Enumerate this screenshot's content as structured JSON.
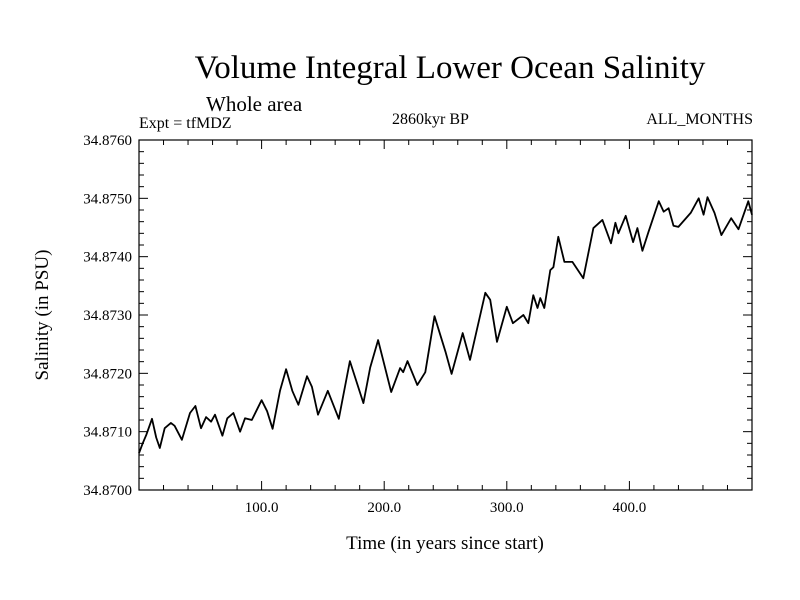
{
  "chart_data": {
    "type": "line",
    "title": "Volume Integral Lower Ocean Salinity",
    "subtitle": "Whole area",
    "annotations": {
      "left": "Expt = tfMDZ",
      "center": "2860kyr BP",
      "right": "ALL_MONTHS"
    },
    "xlabel": "Time (in years since start)",
    "ylabel": "Salinity (in PSU)",
    "xlim": [
      0,
      500
    ],
    "ylim": [
      34.87,
      34.876
    ],
    "x_ticks": [
      100,
      200,
      300,
      400
    ],
    "x_tick_labels": [
      "100.0",
      "200.0",
      "300.0",
      "400.0"
    ],
    "x_minor_step": 20,
    "y_ticks": [
      34.87,
      34.871,
      34.872,
      34.873,
      34.874,
      34.875,
      34.876
    ],
    "y_tick_labels": [
      "34.8700",
      "34.8710",
      "34.8720",
      "34.8730",
      "34.8740",
      "34.8750",
      "34.8760"
    ],
    "y_minor_step": 0.0002,
    "grid": false,
    "series": [
      {
        "name": "Salinity",
        "color": "#000000",
        "x": [
          0,
          3,
          6,
          10.6,
          14,
          17,
          21,
          26,
          29,
          35,
          41.6,
          46,
          50.6,
          54.7,
          58.8,
          62,
          68,
          72,
          77,
          82.5,
          86.5,
          92,
          100,
          104.5,
          109,
          115,
          120,
          125,
          130,
          137,
          141,
          146,
          154,
          163,
          172,
          183,
          188.6,
          195,
          205.7,
          213,
          215.5,
          219,
          227,
          233.5,
          241,
          250,
          255,
          264,
          270,
          282.5,
          286.5,
          292,
          300,
          305,
          313.5,
          317.5,
          321.6,
          325,
          327.3,
          330.6,
          335.5,
          338,
          342,
          347,
          353.5,
          362.4,
          370.6,
          378,
          385,
          388.6,
          391,
          397,
          403,
          406.5,
          410.6,
          415.5,
          424,
          428,
          432,
          436,
          440,
          450,
          456.5,
          460.5,
          463.7,
          469.4,
          475,
          483,
          489,
          497,
          500
        ],
        "y": [
          34.87063,
          34.8708,
          34.87095,
          34.87122,
          34.8709,
          34.87072,
          34.87106,
          34.87115,
          34.8711,
          34.87086,
          34.87132,
          34.87144,
          34.87106,
          34.87125,
          34.87117,
          34.87129,
          34.87093,
          34.87123,
          34.87132,
          34.871,
          34.87123,
          34.8712,
          34.87154,
          34.87135,
          34.87105,
          34.8717,
          34.87207,
          34.8717,
          34.87146,
          34.87195,
          34.87177,
          34.87129,
          34.8717,
          34.87122,
          34.87221,
          34.87149,
          34.8721,
          34.87257,
          34.87168,
          34.87209,
          34.87202,
          34.87221,
          34.8718,
          34.87202,
          34.87298,
          34.87237,
          34.87199,
          34.87269,
          34.87223,
          34.87338,
          34.87326,
          34.87254,
          34.87314,
          34.87286,
          34.873,
          34.87286,
          34.87334,
          34.87312,
          34.87329,
          34.87312,
          34.87377,
          34.87382,
          34.87434,
          34.87391,
          34.87391,
          34.87363,
          34.87449,
          34.87463,
          34.87423,
          34.87458,
          34.8744,
          34.8747,
          34.87425,
          34.87449,
          34.8741,
          34.87442,
          34.87495,
          34.87477,
          34.87483,
          34.87453,
          34.87451,
          34.87475,
          34.875,
          34.87472,
          34.87502,
          34.87475,
          34.87437,
          34.87466,
          34.87447,
          34.87495,
          34.87472
        ]
      }
    ]
  }
}
